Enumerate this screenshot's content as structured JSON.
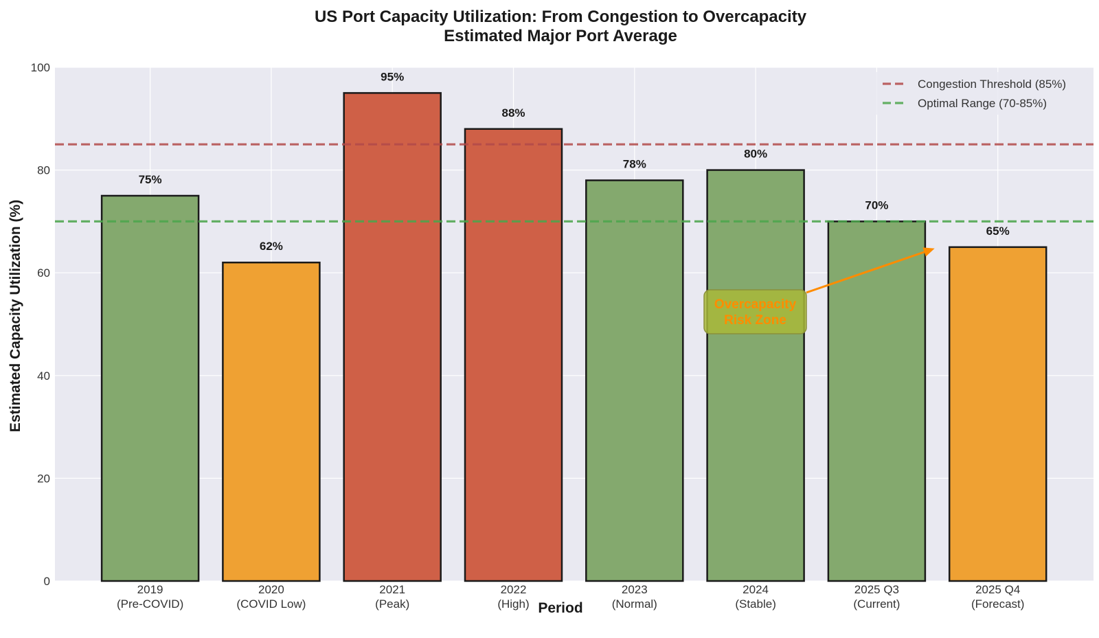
{
  "chart_data": {
    "type": "bar",
    "title": "US Port Capacity Utilization: From Congestion to Overcapacity",
    "subtitle": "Estimated Major Port Average",
    "xlabel": "Period",
    "ylabel": "Estimated Capacity Utilization (%)",
    "ylim": [
      0,
      100
    ],
    "yticks": [
      0,
      20,
      40,
      60,
      80,
      100
    ],
    "grid": true,
    "categories": [
      {
        "year": "2019",
        "note": "(Pre-COVID)"
      },
      {
        "year": "2020",
        "note": "(COVID Low)"
      },
      {
        "year": "2021",
        "note": "(Peak)"
      },
      {
        "year": "2022",
        "note": "(High)"
      },
      {
        "year": "2023",
        "note": "(Normal)"
      },
      {
        "year": "2024",
        "note": "(Stable)"
      },
      {
        "year": "2025 Q3",
        "note": "(Current)"
      },
      {
        "year": "2025 Q4",
        "note": "(Forecast)"
      }
    ],
    "values": [
      75,
      62,
      95,
      88,
      78,
      80,
      70,
      65
    ],
    "value_labels": [
      "75%",
      "62%",
      "95%",
      "88%",
      "78%",
      "80%",
      "70%",
      "65%"
    ],
    "bar_colors": [
      "#84a96e",
      "#efa133",
      "#cf6047",
      "#cf6047",
      "#84a96e",
      "#84a96e",
      "#84a96e",
      "#efa133"
    ],
    "reference_lines": [
      {
        "name": "Congestion Threshold (85%)",
        "value": 85,
        "color": "#b24a4a",
        "style": "dashed"
      },
      {
        "name": "Optimal Range (70-85%)",
        "value": 70,
        "color": "#4ca64c",
        "style": "dashed"
      }
    ],
    "legend_position": "top-right",
    "annotation": {
      "text_lines": [
        "Overcapacity",
        "Risk Zone"
      ],
      "points_to_category": "2025 Q4",
      "points_to_value": 65,
      "text_color": "#ff8c00",
      "box_color": "#a8b83a"
    },
    "colors": {
      "plot_background": "#e9e9f1",
      "grid": "#ffffff",
      "bar_edge": "#1a1a1a"
    }
  }
}
